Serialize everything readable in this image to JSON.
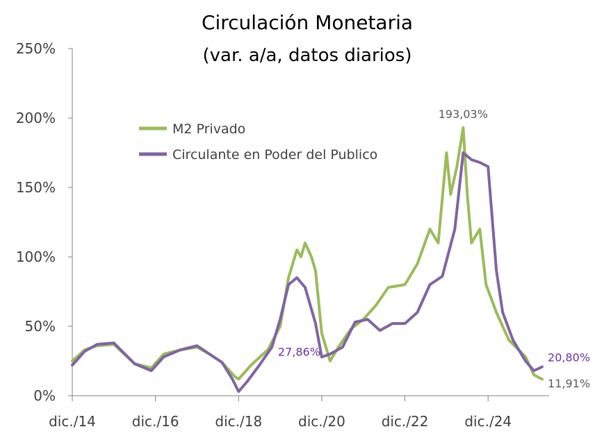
{
  "chart_data": {
    "type": "line",
    "title": "Circulación Monetaria",
    "subtitle": "(var. a/a, datos diarios)",
    "xlabel": "",
    "ylabel": "",
    "ylim": [
      0,
      250
    ],
    "y_ticks": [
      "0%",
      "50%",
      "100%",
      "150%",
      "200%",
      "250%"
    ],
    "x_tick_labels": [
      "dic./14",
      "dic./16",
      "dic./18",
      "dic./20",
      "dic./22",
      "dic./24"
    ],
    "x_tick_values": [
      0,
      2,
      4,
      6,
      8,
      10
    ],
    "xlim": [
      0,
      11.4
    ],
    "grid": false,
    "legend_position": "top-left",
    "series": [
      {
        "name": "M2 Privado",
        "color": "#9BBB59",
        "x": [
          0,
          0.3,
          0.6,
          1.0,
          1.5,
          1.9,
          2.2,
          2.6,
          3.0,
          3.3,
          3.6,
          3.9,
          4.0,
          4.3,
          4.7,
          5.0,
          5.2,
          5.4,
          5.5,
          5.6,
          5.75,
          5.85,
          6.0,
          6.2,
          6.4,
          6.7,
          7.0,
          7.3,
          7.6,
          8.0,
          8.3,
          8.6,
          8.8,
          9.0,
          9.1,
          9.25,
          9.4,
          9.5,
          9.6,
          9.8,
          9.95,
          10.2,
          10.5,
          10.9,
          11.1,
          11.3
        ],
        "y": [
          25,
          33,
          36,
          37,
          23,
          20,
          30,
          33,
          35,
          30,
          24,
          14,
          12,
          22,
          33,
          50,
          85,
          105,
          100,
          110,
          100,
          90,
          45,
          25,
          35,
          48,
          55,
          65,
          78,
          80,
          95,
          120,
          110,
          175,
          145,
          165,
          193.03,
          145,
          110,
          120,
          80,
          60,
          40,
          28,
          15,
          11.91
        ]
      },
      {
        "name": "Circulante en Poder del Publico",
        "color": "#8064A2",
        "x": [
          0,
          0.3,
          0.6,
          1.0,
          1.5,
          1.9,
          2.2,
          2.6,
          3.0,
          3.3,
          3.6,
          3.85,
          4.0,
          4.2,
          4.5,
          4.8,
          5.0,
          5.2,
          5.4,
          5.6,
          5.85,
          6.0,
          6.2,
          6.5,
          6.8,
          7.1,
          7.4,
          7.7,
          8.0,
          8.3,
          8.6,
          8.9,
          9.2,
          9.4,
          9.6,
          9.8,
          10.0,
          10.2,
          10.35,
          10.6,
          10.9,
          11.1,
          11.3
        ],
        "y": [
          22,
          32,
          37,
          38,
          23,
          18,
          28,
          33,
          36,
          30,
          24,
          12,
          3,
          10,
          22,
          35,
          55,
          80,
          85,
          78,
          52,
          27.86,
          30,
          35,
          53,
          55,
          47,
          52,
          52,
          60,
          80,
          86,
          120,
          175,
          170,
          168,
          165,
          90,
          60,
          40,
          25,
          18,
          20.8
        ]
      }
    ],
    "annotations": [
      {
        "text": "193,03%",
        "x": 9.4,
        "y": 193.03,
        "color": "#595959"
      },
      {
        "text": "27,86%",
        "x": 6.0,
        "y": 27.86,
        "color": "#7030A0"
      },
      {
        "text": "20,80%",
        "x": 11.3,
        "y": 20.8,
        "color": "#7030A0"
      },
      {
        "text": "11,91%",
        "x": 11.3,
        "y": 11.91,
        "color": "#595959"
      }
    ]
  }
}
